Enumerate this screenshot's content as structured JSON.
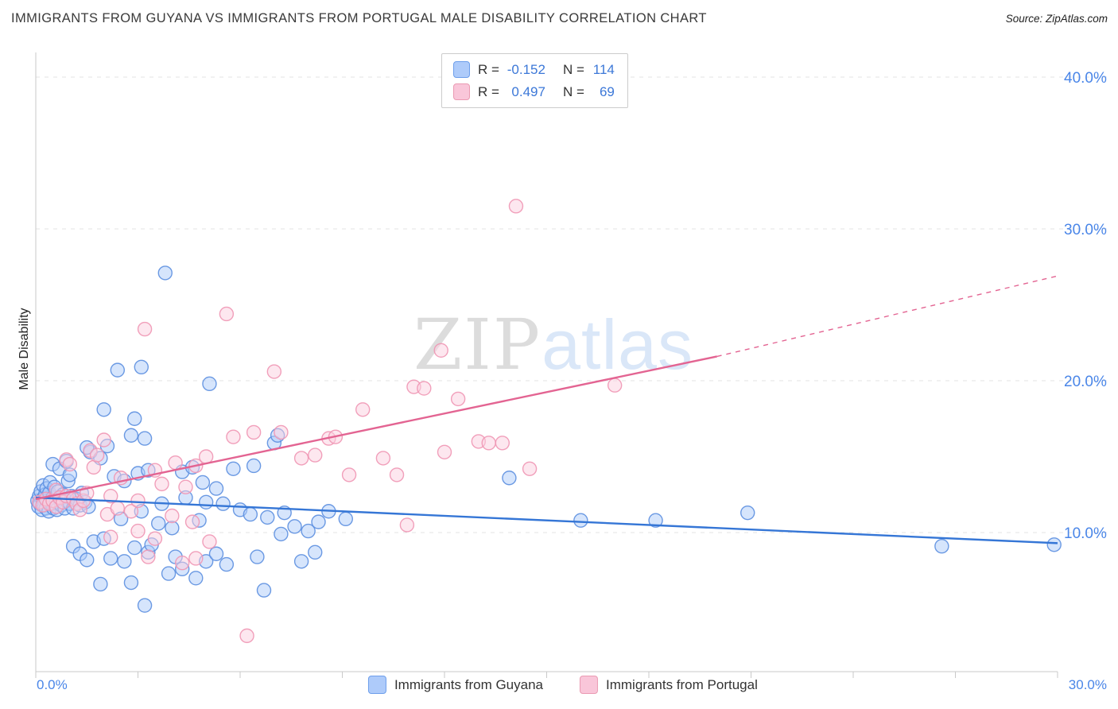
{
  "page": {
    "title": "IMMIGRANTS FROM GUYANA VS IMMIGRANTS FROM PORTUGAL MALE DISABILITY CORRELATION CHART",
    "source": "Source: ZipAtlas.com",
    "watermark_zip": "ZIP",
    "watermark_atlas": "atlas"
  },
  "axes": {
    "y_label": "Male Disability",
    "x_tick_left": "0.0%",
    "x_tick_right": "30.0%",
    "y_ticks": [
      "40.0%",
      "30.0%",
      "20.0%",
      "10.0%"
    ]
  },
  "stats_box": {
    "rows": [
      {
        "r_label": "R =",
        "r_value": "-0.152",
        "n_label": "N =",
        "n_value": "114"
      },
      {
        "r_label": "R =",
        "r_value": "0.497",
        "n_label": "N =",
        "n_value": "69"
      }
    ]
  },
  "legend": {
    "guyana": "Immigrants from Guyana",
    "portugal": "Immigrants from Portugal"
  },
  "colors": {
    "blue_fill": "#aecbfa",
    "blue_stroke": "#5c8fe0",
    "blue_line": "#3576d6",
    "pink_fill": "#fbd0e0",
    "pink_stroke": "#f096b4",
    "pink_line": "#e36492",
    "tick_blue": "#4a86e8"
  },
  "chart_data": {
    "type": "scatter",
    "title": "IMMIGRANTS FROM GUYANA VS IMMIGRANTS FROM PORTUGAL MALE DISABILITY CORRELATION CHART",
    "xlabel": "",
    "ylabel": "Male Disability",
    "xlim": [
      0,
      30
    ],
    "ylim": [
      0,
      42
    ],
    "grid": true,
    "gridlines_y": [
      10,
      20,
      30,
      40
    ],
    "legend_position": "bottom",
    "series": [
      {
        "name": "Immigrants from Guyana",
        "r": -0.152,
        "n": 114,
        "fill": "#aecbfa",
        "stroke": "#5c8fe0",
        "line_color": "#3576d6",
        "trend": {
          "x1": 0,
          "y1": 12.3,
          "x2": 30,
          "y2": 9.3
        },
        "points": [
          [
            0.05,
            12.1
          ],
          [
            0.08,
            11.7
          ],
          [
            0.1,
            12.4
          ],
          [
            0.12,
            11.9
          ],
          [
            0.15,
            12.7
          ],
          [
            0.18,
            11.5
          ],
          [
            0.2,
            12.2
          ],
          [
            0.22,
            13.1
          ],
          [
            0.25,
            11.8
          ],
          [
            0.28,
            12.5
          ],
          [
            0.3,
            11.6
          ],
          [
            0.32,
            12.9
          ],
          [
            0.35,
            12.1
          ],
          [
            0.38,
            11.4
          ],
          [
            0.4,
            12.6
          ],
          [
            0.42,
            13.3
          ],
          [
            0.45,
            11.9
          ],
          [
            0.5,
            12.3
          ],
          [
            0.52,
            11.6
          ],
          [
            0.55,
            13.0
          ],
          [
            0.6,
            12.0
          ],
          [
            0.62,
            11.5
          ],
          [
            0.65,
            12.7
          ],
          [
            0.7,
            12.2
          ],
          [
            0.75,
            11.8
          ],
          [
            0.8,
            12.5
          ],
          [
            0.85,
            11.6
          ],
          [
            0.9,
            12.1
          ],
          [
            0.95,
            13.4
          ],
          [
            1.0,
            11.9
          ],
          [
            1.05,
            12.4
          ],
          [
            1.1,
            11.6
          ],
          [
            1.2,
            12.2
          ],
          [
            1.3,
            11.8
          ],
          [
            1.35,
            12.6
          ],
          [
            1.45,
            12.0
          ],
          [
            1.55,
            11.7
          ],
          [
            0.5,
            14.5
          ],
          [
            0.7,
            14.2
          ],
          [
            0.9,
            14.7
          ],
          [
            1.0,
            13.8
          ],
          [
            1.6,
            15.3
          ],
          [
            1.5,
            15.6
          ],
          [
            2.1,
            15.7
          ],
          [
            1.9,
            14.9
          ],
          [
            2.3,
            13.7
          ],
          [
            2.6,
            13.4
          ],
          [
            3.0,
            13.9
          ],
          [
            3.3,
            14.1
          ],
          [
            2.0,
            18.1
          ],
          [
            2.4,
            20.7
          ],
          [
            3.1,
            20.9
          ],
          [
            2.9,
            17.5
          ],
          [
            2.8,
            16.4
          ],
          [
            3.2,
            16.2
          ],
          [
            3.8,
            27.1
          ],
          [
            5.1,
            19.8
          ],
          [
            4.3,
            14.0
          ],
          [
            4.6,
            14.3
          ],
          [
            4.9,
            13.3
          ],
          [
            5.3,
            12.9
          ],
          [
            5.8,
            14.2
          ],
          [
            6.4,
            14.4
          ],
          [
            7.0,
            15.9
          ],
          [
            7.1,
            16.4
          ],
          [
            4.4,
            12.3
          ],
          [
            5.0,
            12.0
          ],
          [
            5.5,
            11.9
          ],
          [
            6.0,
            11.5
          ],
          [
            6.3,
            11.2
          ],
          [
            6.8,
            11.0
          ],
          [
            7.3,
            11.3
          ],
          [
            7.6,
            10.4
          ],
          [
            8.0,
            10.1
          ],
          [
            8.3,
            10.7
          ],
          [
            8.6,
            11.4
          ],
          [
            9.1,
            10.9
          ],
          [
            1.1,
            9.1
          ],
          [
            1.3,
            8.6
          ],
          [
            1.5,
            8.2
          ],
          [
            1.7,
            9.4
          ],
          [
            2.0,
            9.6
          ],
          [
            2.2,
            8.3
          ],
          [
            2.6,
            8.1
          ],
          [
            2.9,
            9.0
          ],
          [
            3.3,
            8.7
          ],
          [
            3.4,
            9.2
          ],
          [
            3.6,
            10.6
          ],
          [
            3.9,
            7.3
          ],
          [
            4.0,
            10.3
          ],
          [
            4.1,
            8.4
          ],
          [
            4.3,
            7.6
          ],
          [
            4.7,
            7.0
          ],
          [
            5.0,
            8.1
          ],
          [
            5.3,
            8.6
          ],
          [
            5.6,
            7.9
          ],
          [
            6.7,
            6.2
          ],
          [
            1.9,
            6.6
          ],
          [
            2.8,
            6.7
          ],
          [
            3.2,
            5.2
          ],
          [
            6.5,
            8.4
          ],
          [
            7.2,
            9.9
          ],
          [
            7.8,
            8.1
          ],
          [
            8.2,
            8.7
          ],
          [
            2.5,
            10.9
          ],
          [
            3.1,
            11.4
          ],
          [
            3.7,
            11.9
          ],
          [
            4.8,
            10.8
          ],
          [
            13.9,
            13.6
          ],
          [
            16.0,
            10.8
          ],
          [
            18.2,
            10.8
          ],
          [
            20.9,
            11.3
          ],
          [
            26.6,
            9.1
          ],
          [
            29.9,
            9.2
          ]
        ]
      },
      {
        "name": "Immigrants from Portugal",
        "r": 0.497,
        "n": 69,
        "fill": "#fbd0e0",
        "stroke": "#f096b4",
        "line_color": "#e36492",
        "trend": {
          "x1": 0,
          "y1": 12.2,
          "x2": 20,
          "y2": 21.6
        },
        "trend_dashed": {
          "x1": 20,
          "y1": 21.6,
          "x2": 30,
          "y2": 26.9
        },
        "points": [
          [
            0.1,
            12.0
          ],
          [
            0.2,
            11.8
          ],
          [
            0.3,
            12.2
          ],
          [
            0.4,
            11.9
          ],
          [
            0.5,
            12.1
          ],
          [
            0.6,
            11.7
          ],
          [
            0.6,
            12.8
          ],
          [
            0.7,
            12.3
          ],
          [
            0.8,
            12.0
          ],
          [
            0.9,
            14.8
          ],
          [
            0.9,
            12.4
          ],
          [
            1.0,
            14.5
          ],
          [
            1.1,
            12.2
          ],
          [
            1.2,
            11.9
          ],
          [
            1.3,
            11.5
          ],
          [
            1.4,
            12.1
          ],
          [
            1.5,
            12.6
          ],
          [
            1.6,
            15.4
          ],
          [
            1.7,
            14.3
          ],
          [
            1.8,
            15.1
          ],
          [
            2.0,
            16.1
          ],
          [
            2.1,
            11.2
          ],
          [
            2.2,
            12.4
          ],
          [
            2.2,
            9.7
          ],
          [
            2.4,
            11.6
          ],
          [
            2.5,
            13.6
          ],
          [
            2.8,
            11.4
          ],
          [
            3.0,
            12.1
          ],
          [
            3.0,
            10.1
          ],
          [
            3.2,
            23.4
          ],
          [
            3.3,
            8.4
          ],
          [
            3.5,
            14.1
          ],
          [
            3.5,
            9.6
          ],
          [
            3.7,
            13.2
          ],
          [
            4.0,
            11.1
          ],
          [
            4.1,
            14.6
          ],
          [
            4.3,
            8.0
          ],
          [
            4.4,
            13.0
          ],
          [
            4.6,
            10.7
          ],
          [
            4.7,
            14.4
          ],
          [
            4.7,
            8.3
          ],
          [
            5.0,
            15.0
          ],
          [
            5.1,
            9.4
          ],
          [
            5.6,
            24.4
          ],
          [
            5.8,
            16.3
          ],
          [
            6.2,
            3.2
          ],
          [
            6.4,
            16.6
          ],
          [
            7.0,
            20.6
          ],
          [
            7.2,
            16.6
          ],
          [
            7.8,
            14.9
          ],
          [
            8.2,
            15.1
          ],
          [
            8.6,
            16.2
          ],
          [
            8.8,
            16.3
          ],
          [
            9.2,
            13.8
          ],
          [
            9.6,
            18.1
          ],
          [
            10.2,
            14.9
          ],
          [
            10.6,
            13.8
          ],
          [
            10.9,
            10.5
          ],
          [
            11.1,
            19.6
          ],
          [
            11.4,
            19.5
          ],
          [
            11.9,
            22.0
          ],
          [
            12.0,
            15.3
          ],
          [
            12.4,
            18.8
          ],
          [
            13.0,
            16.0
          ],
          [
            13.3,
            15.9
          ],
          [
            13.7,
            15.9
          ],
          [
            14.1,
            31.5
          ],
          [
            14.5,
            14.2
          ],
          [
            17.0,
            19.7
          ]
        ]
      }
    ]
  }
}
